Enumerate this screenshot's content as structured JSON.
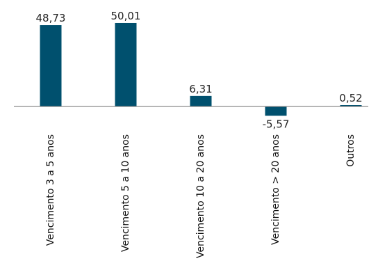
{
  "chart_data": {
    "type": "bar",
    "categories": [
      "Vencimento 3 a 5 anos",
      "Vencimento 5 a 10 anos",
      "Vencimento 10 a 20 anos",
      "Vencimento > 20 anos",
      "Outros"
    ],
    "values": [
      48.73,
      50.01,
      6.31,
      -5.57,
      0.52
    ],
    "value_labels": [
      "48,73",
      "50,01",
      "6,31",
      "-5,57",
      "0,52"
    ],
    "bar_color": "#00506e",
    "axis_color": "#8a8a8a",
    "grid": false,
    "legend": "none"
  }
}
